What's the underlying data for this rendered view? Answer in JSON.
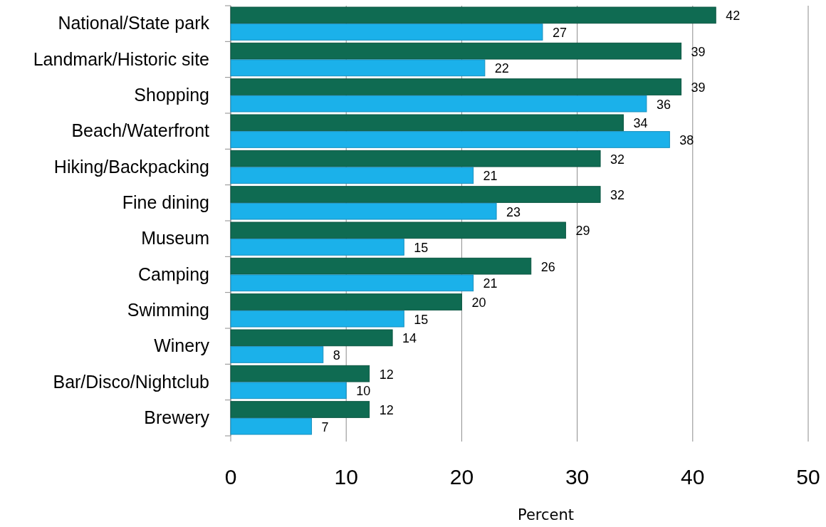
{
  "chart_data": {
    "type": "bar",
    "orientation": "horizontal",
    "xlabel": "Percent",
    "categories": [
      "National/State park",
      "Landmark/Historic site",
      "Shopping",
      "Beach/Waterfront",
      "Hiking/Backpacking",
      "Fine dining",
      "Museum",
      "Camping",
      "Swimming",
      "Winery",
      "Bar/Disco/Nightclub",
      "Brewery"
    ],
    "series": [
      {
        "color": "#0f6b52",
        "values": [
          42,
          39,
          39,
          34,
          32,
          32,
          29,
          26,
          20,
          14,
          12,
          12
        ]
      },
      {
        "color": "#1bb1ea",
        "values": [
          27,
          22,
          36,
          38,
          21,
          23,
          15,
          21,
          15,
          8,
          10,
          7
        ]
      }
    ],
    "xlim": [
      0,
      50
    ],
    "xticks": [
      0,
      10,
      20,
      30,
      40,
      50
    ],
    "grid": "x",
    "data_labels": true
  }
}
